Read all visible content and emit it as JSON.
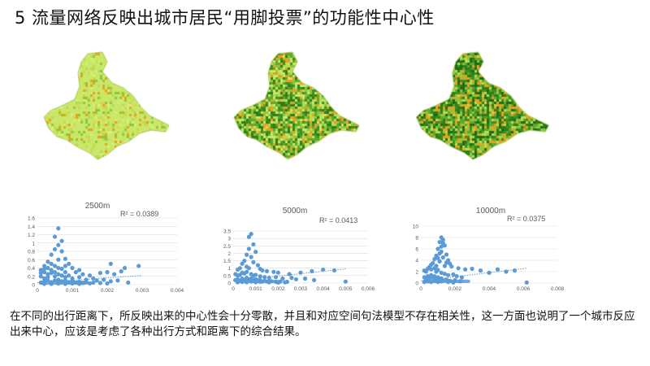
{
  "slide": {
    "title": "5 流量网络反映出城市居民“用脚投票”的功能性中心性",
    "caption": "在不同的出行距离下，所反映出来的中心性会十分零散，并且和对应空间句法模型不存在相关性，这一方面也说明了一个城市反应出来中心，应该是考虑了各种出行方式和距离下的综合结果。"
  },
  "maps": [
    {
      "name": "map-2500m",
      "palette": "light"
    },
    {
      "name": "map-5000m",
      "palette": "mid"
    },
    {
      "name": "map-10000m",
      "palette": "dark"
    }
  ],
  "colors": {
    "point": "#5b9bd5",
    "trendline": "#5b9bd5",
    "grid": "#d9d9d9",
    "axis_text": "#595959",
    "map_base": "#c9e86a",
    "map_dark": "#2e7d1a",
    "map_hot": "#e8a21c"
  },
  "chart_data": [
    {
      "type": "scatter",
      "title": "2500m",
      "r2_label": "R² = 0.0389",
      "xlim": [
        0,
        0.004
      ],
      "ylim": [
        0,
        1.6
      ],
      "x_ticks": [
        "0",
        "0.001",
        "0.002",
        "0.003",
        "0.004"
      ],
      "y_ticks": [
        "0",
        "0.2",
        "0.4",
        "0.6",
        "0.8",
        "1",
        "1.2",
        "1.4",
        "1.6"
      ],
      "trend": {
        "from": [
          0,
          0.05
        ],
        "to": [
          0.003,
          0.22
        ]
      },
      "points": [
        [
          0.0006,
          1.35
        ],
        [
          0.0005,
          1.15
        ],
        [
          0.0007,
          1.05
        ],
        [
          0.0006,
          0.95
        ],
        [
          0.0005,
          0.85
        ],
        [
          0.0007,
          0.8
        ],
        [
          0.0004,
          0.72
        ],
        [
          0.0008,
          0.62
        ],
        [
          0.0003,
          0.55
        ],
        [
          0.0006,
          0.6
        ],
        [
          0.0009,
          0.5
        ],
        [
          0.0002,
          0.45
        ],
        [
          0.0004,
          0.5
        ],
        [
          0.0005,
          0.45
        ],
        [
          0.001,
          0.4
        ],
        [
          0.0012,
          0.35
        ],
        [
          0.0001,
          0.35
        ],
        [
          0.0002,
          0.3
        ],
        [
          0.0003,
          0.4
        ],
        [
          0.0004,
          0.35
        ],
        [
          0.0007,
          0.38
        ],
        [
          0.0008,
          0.3
        ],
        [
          0.0011,
          0.3
        ],
        [
          0.0013,
          0.25
        ],
        [
          0.0015,
          0.22
        ],
        [
          0.0018,
          0.28
        ],
        [
          0.002,
          0.3
        ],
        [
          0.0022,
          0.25
        ],
        [
          0.0024,
          0.32
        ],
        [
          0.0029,
          0.45
        ],
        [
          0.0021,
          0.5
        ],
        [
          0.0025,
          0.4
        ],
        [
          0.0001,
          0.2
        ],
        [
          0.0002,
          0.15
        ],
        [
          0.0003,
          0.18
        ],
        [
          0.0005,
          0.2
        ],
        [
          0.0006,
          0.25
        ],
        [
          0.0008,
          0.18
        ],
        [
          0.0009,
          0.22
        ],
        [
          0.001,
          0.15
        ],
        [
          0.0012,
          0.18
        ],
        [
          0.0014,
          0.12
        ],
        [
          0.0016,
          0.15
        ],
        [
          0.0017,
          0.1
        ],
        [
          0.0019,
          0.12
        ],
        [
          0.0021,
          0.08
        ],
        [
          0.0023,
          0.1
        ],
        [
          0.0026,
          0.05
        ],
        [
          0.0001,
          0.05
        ],
        [
          0.0002,
          0.08
        ],
        [
          0.0003,
          0.1
        ],
        [
          0.0004,
          0.06
        ],
        [
          0.0005,
          0.1
        ],
        [
          0.0006,
          0.12
        ],
        [
          0.0007,
          0.08
        ],
        [
          0.0008,
          0.1
        ],
        [
          0.0009,
          0.06
        ],
        [
          0.001,
          0.08
        ],
        [
          0.0011,
          0.05
        ],
        [
          0.0012,
          0.07
        ],
        [
          0.0013,
          0.04
        ],
        [
          0.0014,
          0.06
        ],
        [
          0.0015,
          0.03
        ],
        [
          0.0016,
          0.05
        ],
        [
          0.0002,
          0.02
        ],
        [
          0.0004,
          0.02
        ],
        [
          0.0006,
          0.03
        ],
        [
          0.0008,
          0.02
        ],
        [
          0.001,
          0.03
        ],
        [
          0.0012,
          0.02
        ],
        [
          0.0018,
          0.04
        ],
        [
          0.002,
          0.03
        ],
        [
          0.0004,
          0.28
        ],
        [
          0.0003,
          0.25
        ],
        [
          0.0005,
          0.3
        ],
        [
          0.0007,
          0.22
        ],
        [
          0.0006,
          0.4
        ],
        [
          0.0008,
          0.45
        ],
        [
          0.0002,
          0.38
        ],
        [
          0.0001,
          0.28
        ]
      ]
    },
    {
      "type": "scatter",
      "title": "5000m",
      "r2_label": "R² = 0.0413",
      "xlim": [
        0,
        0.006
      ],
      "ylim": [
        0,
        3.5
      ],
      "x_ticks": [
        "0",
        "0.001",
        "0.002",
        "0.003",
        "0.004",
        "0.005",
        "0.006"
      ],
      "y_ticks": [
        "0",
        "0.5",
        "1",
        "1.5",
        "2",
        "2.5",
        "3",
        "3.5"
      ],
      "trend": {
        "from": [
          0,
          0.15
        ],
        "to": [
          0.005,
          0.95
        ]
      },
      "points": [
        [
          0.0008,
          3.3
        ],
        [
          0.0007,
          3.1
        ],
        [
          0.0009,
          2.6
        ],
        [
          0.0007,
          2.3
        ],
        [
          0.001,
          2.1
        ],
        [
          0.0006,
          1.9
        ],
        [
          0.0008,
          1.75
        ],
        [
          0.0005,
          1.5
        ],
        [
          0.0009,
          1.4
        ],
        [
          0.0004,
          1.3
        ],
        [
          0.0011,
          1.2
        ],
        [
          0.0006,
          1.1
        ],
        [
          0.0003,
          1.0
        ],
        [
          0.0012,
          0.95
        ],
        [
          0.0002,
          0.9
        ],
        [
          0.0007,
          1.0
        ],
        [
          0.0013,
          0.85
        ],
        [
          0.0015,
          0.8
        ],
        [
          0.0018,
          0.75
        ],
        [
          0.002,
          0.7
        ],
        [
          0.0025,
          0.6
        ],
        [
          0.003,
          0.7
        ],
        [
          0.0035,
          0.8
        ],
        [
          0.004,
          0.9
        ],
        [
          0.0045,
          0.85
        ],
        [
          0.005,
          0.1
        ],
        [
          0.0001,
          0.6
        ],
        [
          0.0002,
          0.5
        ],
        [
          0.0003,
          0.55
        ],
        [
          0.0004,
          0.7
        ],
        [
          0.0005,
          0.65
        ],
        [
          0.0006,
          0.75
        ],
        [
          0.0008,
          0.6
        ],
        [
          0.0009,
          0.5
        ],
        [
          0.001,
          0.55
        ],
        [
          0.0012,
          0.45
        ],
        [
          0.0014,
          0.4
        ],
        [
          0.0016,
          0.35
        ],
        [
          0.0019,
          0.4
        ],
        [
          0.0022,
          0.3
        ],
        [
          0.0026,
          0.35
        ],
        [
          0.0028,
          0.25
        ],
        [
          0.0032,
          0.3
        ],
        [
          0.0036,
          0.2
        ],
        [
          0.0001,
          0.2
        ],
        [
          0.0002,
          0.25
        ],
        [
          0.0003,
          0.15
        ],
        [
          0.0004,
          0.3
        ],
        [
          0.0005,
          0.2
        ],
        [
          0.0006,
          0.35
        ],
        [
          0.0007,
          0.25
        ],
        [
          0.0008,
          0.3
        ],
        [
          0.0009,
          0.2
        ],
        [
          0.001,
          0.25
        ],
        [
          0.0011,
          0.15
        ],
        [
          0.0012,
          0.2
        ],
        [
          0.0013,
          0.1
        ],
        [
          0.0014,
          0.15
        ],
        [
          0.0015,
          0.1
        ],
        [
          0.0017,
          0.12
        ],
        [
          0.0019,
          0.08
        ],
        [
          0.0021,
          0.1
        ],
        [
          0.0023,
          0.05
        ],
        [
          0.0024,
          0.08
        ],
        [
          0.0002,
          0.05
        ],
        [
          0.0004,
          0.08
        ],
        [
          0.0006,
          0.05
        ],
        [
          0.0008,
          0.1
        ],
        [
          0.001,
          0.05
        ],
        [
          0.0012,
          0.08
        ],
        [
          0.0016,
          0.05
        ],
        [
          0.002,
          0.03
        ]
      ]
    },
    {
      "type": "scatter",
      "title": "10000m",
      "r2_label": "R² = 0.0375",
      "xlim": [
        0,
        0.008
      ],
      "ylim": [
        0,
        10
      ],
      "x_ticks": [
        "0",
        "0.002",
        "0.004",
        "0.006",
        "0.008"
      ],
      "y_ticks": [
        "0",
        "2",
        "4",
        "6",
        "8",
        "10"
      ],
      "trend": {
        "from": [
          0,
          0.4
        ],
        "to": [
          0.0062,
          2.6
        ]
      },
      "points": [
        [
          0.0012,
          8.0
        ],
        [
          0.0013,
          7.6
        ],
        [
          0.0011,
          7.2
        ],
        [
          0.0014,
          6.6
        ],
        [
          0.001,
          6.0
        ],
        [
          0.0012,
          5.5
        ],
        [
          0.0015,
          5.0
        ],
        [
          0.0009,
          4.8
        ],
        [
          0.0013,
          4.5
        ],
        [
          0.0008,
          4.2
        ],
        [
          0.0016,
          4.0
        ],
        [
          0.0011,
          3.8
        ],
        [
          0.0007,
          3.5
        ],
        [
          0.0017,
          3.4
        ],
        [
          0.0006,
          3.2
        ],
        [
          0.0014,
          3.0
        ],
        [
          0.0018,
          2.9
        ],
        [
          0.0022,
          2.6
        ],
        [
          0.0026,
          2.4
        ],
        [
          0.003,
          2.5
        ],
        [
          0.0035,
          2.2
        ],
        [
          0.004,
          1.8
        ],
        [
          0.0045,
          2.4
        ],
        [
          0.005,
          2.0
        ],
        [
          0.0055,
          2.2
        ],
        [
          0.0062,
          0.1
        ],
        [
          0.0002,
          2.2
        ],
        [
          0.0003,
          2.0
        ],
        [
          0.0004,
          2.5
        ],
        [
          0.0005,
          2.8
        ],
        [
          0.0006,
          2.4
        ],
        [
          0.0008,
          2.6
        ],
        [
          0.0009,
          2.0
        ],
        [
          0.001,
          2.3
        ],
        [
          0.0012,
          1.8
        ],
        [
          0.0014,
          1.6
        ],
        [
          0.0016,
          1.4
        ],
        [
          0.0019,
          1.5
        ],
        [
          0.0021,
          1.2
        ],
        [
          0.0024,
          1.0
        ],
        [
          0.0002,
          1.0
        ],
        [
          0.0003,
          0.8
        ],
        [
          0.0004,
          1.2
        ],
        [
          0.0005,
          0.9
        ],
        [
          0.0006,
          1.4
        ],
        [
          0.0007,
          1.0
        ],
        [
          0.0008,
          1.2
        ],
        [
          0.0009,
          0.8
        ],
        [
          0.001,
          1.0
        ],
        [
          0.0011,
          0.6
        ],
        [
          0.0012,
          0.8
        ],
        [
          0.0013,
          0.5
        ],
        [
          0.0015,
          0.6
        ],
        [
          0.0017,
          0.4
        ],
        [
          0.002,
          0.5
        ],
        [
          0.0023,
          0.3
        ],
        [
          0.0002,
          0.2
        ],
        [
          0.0004,
          0.3
        ],
        [
          0.0006,
          0.2
        ],
        [
          0.0008,
          0.4
        ],
        [
          0.001,
          0.2
        ],
        [
          0.0012,
          0.3
        ],
        [
          0.0016,
          0.2
        ],
        [
          0.0019,
          0.1
        ],
        [
          0.0011,
          5.2
        ],
        [
          0.0012,
          6.4
        ],
        [
          0.0013,
          7.0
        ],
        [
          0.0015,
          3.6
        ],
        [
          0.0009,
          3.0
        ],
        [
          0.001,
          4.4
        ]
      ]
    }
  ]
}
